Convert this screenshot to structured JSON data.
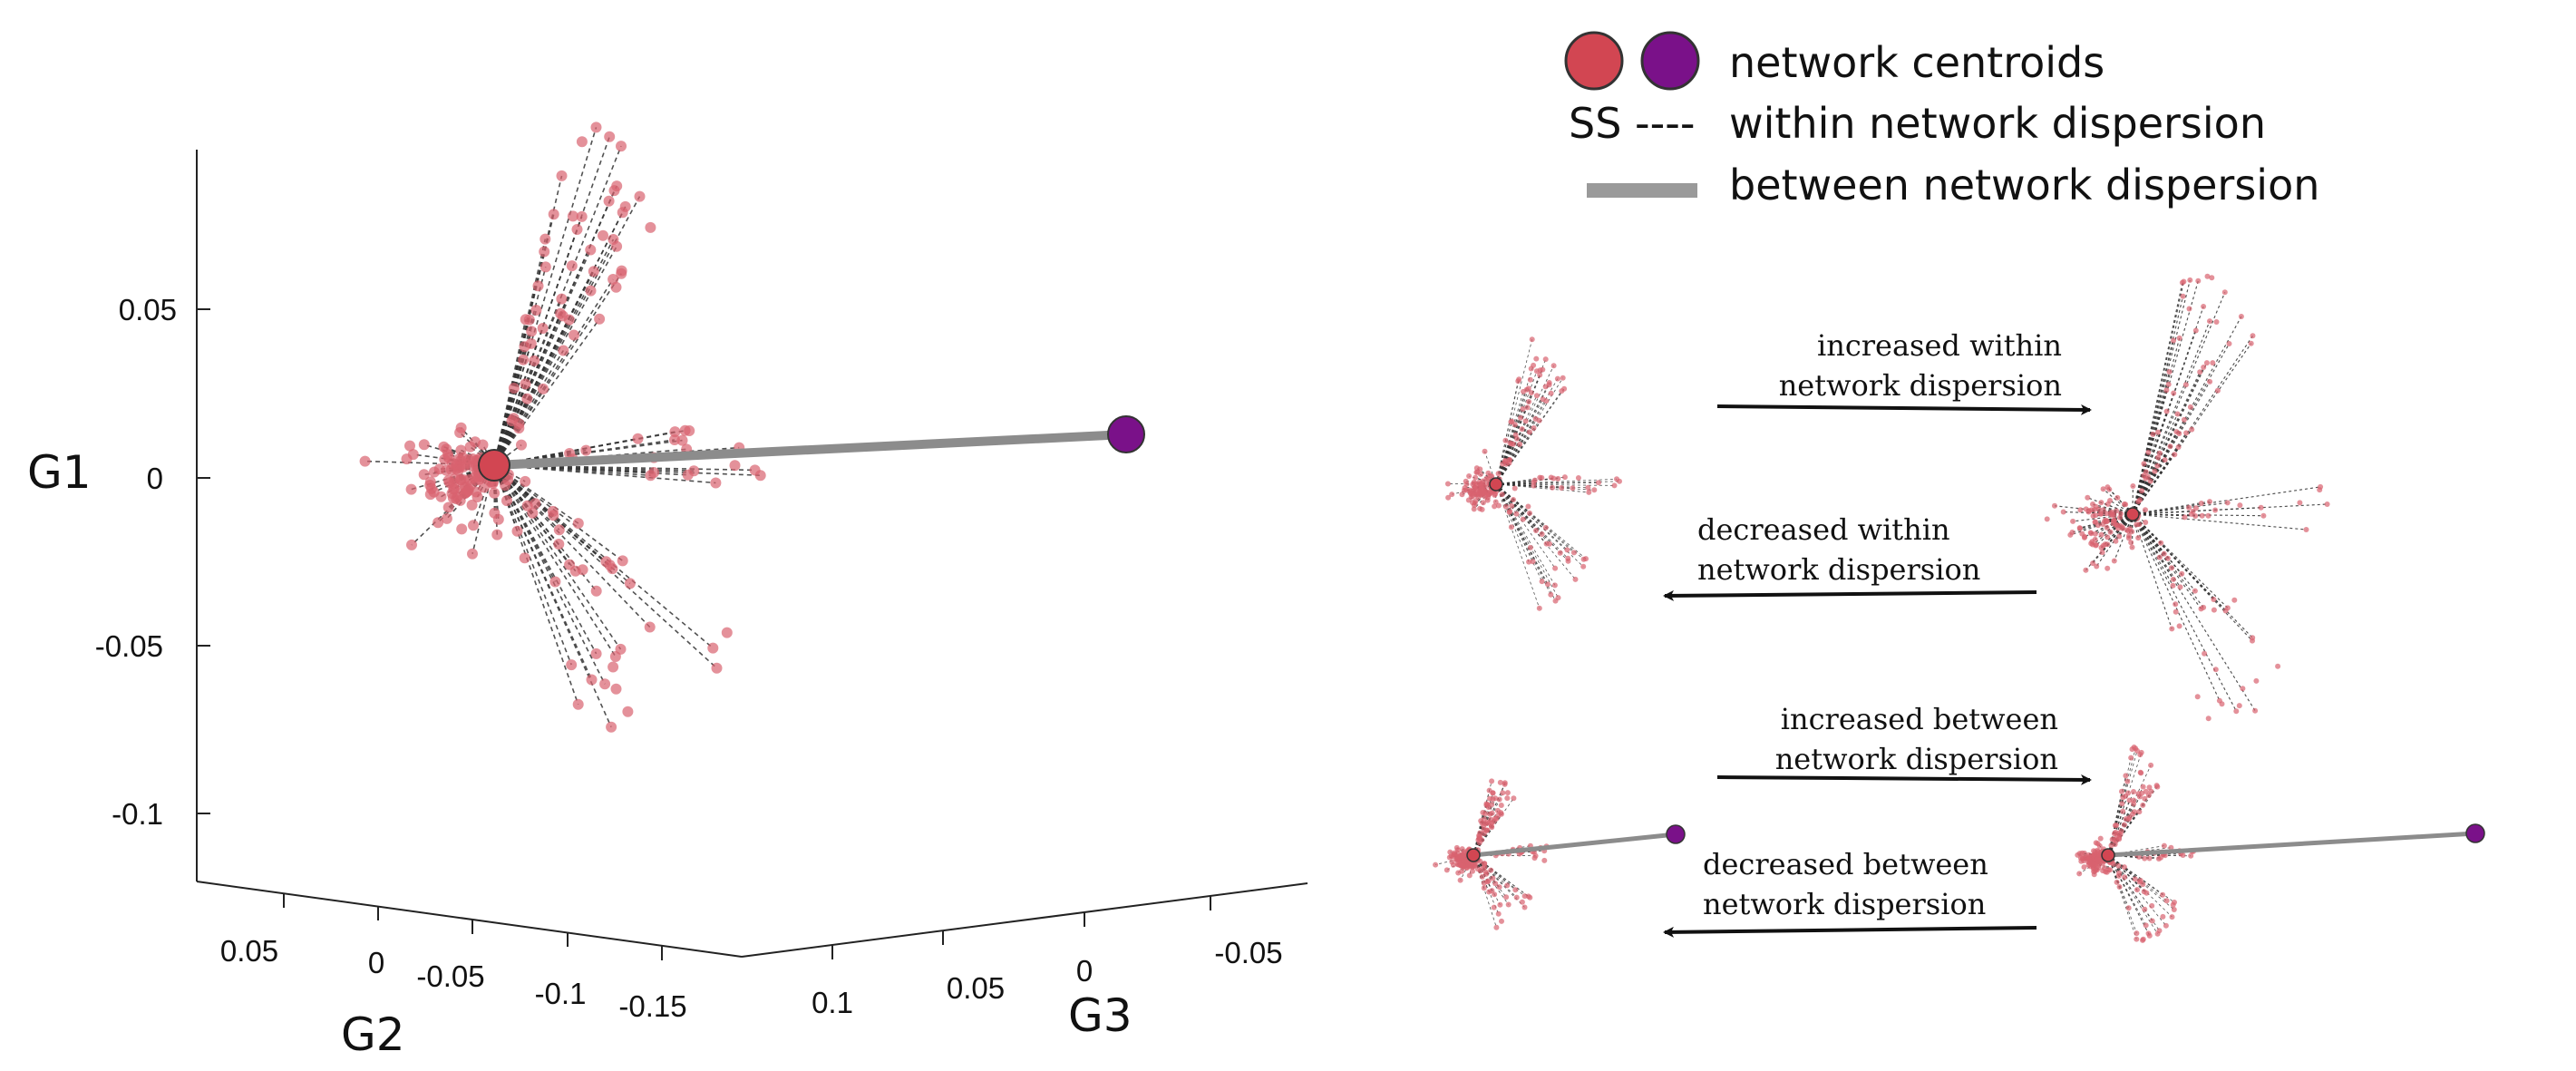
{
  "figure": {
    "axes": {
      "y_label": "G1",
      "x_label": "G2",
      "z_label": "G3",
      "y_ticks": [
        "0.05",
        "0",
        "-0.05",
        "-0.1"
      ],
      "x_ticks": [
        "0.05",
        "0",
        "-0.05",
        "-0.1",
        "-0.15"
      ],
      "z_ticks": [
        "0.1",
        "0.05",
        "0",
        "-0.05"
      ]
    },
    "centroid_colors": {
      "network_a": "#d24652",
      "network_b": "#7a1189"
    },
    "point_color": "#d9636f",
    "between_line_color": "#8c8c8c"
  },
  "legend": {
    "centroids_label": "network centroids",
    "ss_prefix": "SS ----",
    "within_label": "within network dispersion",
    "between_label": "between network dispersion"
  },
  "annotations": {
    "inc_within_1": "increased within",
    "inc_within_2": "network dispersion",
    "dec_within_1": "decreased within",
    "dec_within_2": "network dispersion",
    "inc_between_1": "increased between",
    "inc_between_2": "network dispersion",
    "dec_between_1": "decreased between",
    "dec_between_2": "network dispersion"
  }
}
